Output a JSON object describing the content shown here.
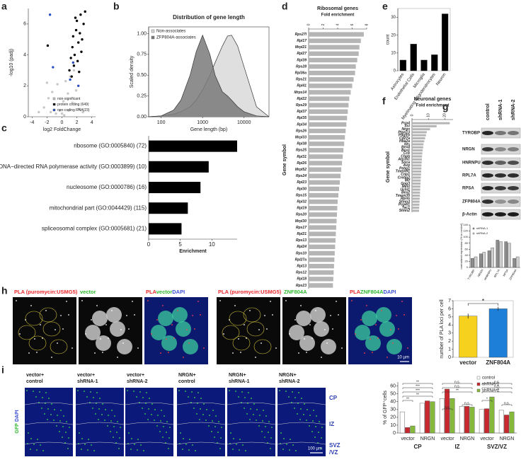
{
  "panel_labels": [
    "a",
    "b",
    "c",
    "d",
    "e",
    "f",
    "g",
    "h",
    "i"
  ],
  "chart_data": [
    {
      "type": "scatter",
      "x_label": "log2 FoldChange",
      "y_label": "-log10 (padj)",
      "xlim": [
        -4.5,
        4.5
      ],
      "ylim": [
        0,
        7
      ],
      "xticks": [
        -4,
        -2,
        0,
        2,
        4
      ],
      "yticks": [
        0,
        2,
        4,
        6
      ],
      "legend": "lower right",
      "series": [
        {
          "name": "non-significant",
          "color": "#c8c8c8",
          "x": [
            -3.1,
            -2.4,
            -1.8,
            -1.3,
            -0.9,
            -0.6,
            -0.3,
            0,
            0.2,
            0.5,
            0.8,
            1.1,
            1.4,
            1.9,
            2.3,
            2.8,
            -1.5,
            -0.8,
            0.3,
            0.9,
            -2.0,
            1.6
          ],
          "values": [
            0.3,
            0.6,
            1.2,
            1.6,
            0.8,
            2.1,
            0.4,
            0.2,
            1.0,
            2.3,
            1.5,
            2.6,
            0.9,
            1.7,
            0.5,
            0.3,
            0.3,
            0.2,
            0.1,
            0.4,
            2.2,
            3.0
          ]
        },
        {
          "name": "protein coding (649)",
          "color": "#000000",
          "x": [
            1.0,
            1.2,
            1.4,
            1.5,
            1.7,
            1.9,
            2.0,
            2.2,
            2.4,
            2.5,
            2.7,
            2.9,
            3.1,
            1.3,
            1.6,
            1.8,
            2.1,
            2.3,
            -1.9,
            2.6
          ],
          "values": [
            3.0,
            3.8,
            4.5,
            5.2,
            4.0,
            5.6,
            6.2,
            4.8,
            5.4,
            6.6,
            5.0,
            6.0,
            6.8,
            2.6,
            3.3,
            6.4,
            3.6,
            2.9,
            4.6,
            4.2
          ]
        },
        {
          "name": "non-coding RNA(23)",
          "color": "#2a4fc4",
          "x": [
            -1.6,
            -1.2,
            1.1,
            1.5,
            2.2
          ],
          "values": [
            6.6,
            3.2,
            2.4,
            3.5,
            2.0
          ]
        }
      ]
    },
    {
      "type": "area",
      "title": "Distribution of gene length",
      "x_label": "Gene length (bp)",
      "y_label": "Scaled density",
      "xscale": "log",
      "xlim": [
        50,
        40000
      ],
      "ylim": [
        0,
        1.08
      ],
      "xticks": [
        100,
        1000,
        10000
      ],
      "yticks": [
        {
          "value": 0,
          "label": "0.00"
        },
        {
          "value": 0.25,
          "label": "0.25"
        },
        {
          "value": 0.5,
          "label": "0.50"
        },
        {
          "value": 0.75,
          "label": "0.75"
        },
        {
          "value": 1,
          "label": "1.00"
        }
      ],
      "legend": "upper left",
      "x": [
        50,
        100,
        200,
        300,
        500,
        700,
        1000,
        1500,
        2000,
        3000,
        4000,
        5000,
        7000,
        10000,
        20000,
        40000
      ],
      "series": [
        {
          "name": "Non-associates",
          "color": "#d9d9d9",
          "values": [
            0,
            0.01,
            0.03,
            0.06,
            0.12,
            0.2,
            0.32,
            0.5,
            0.65,
            0.85,
            0.97,
            0.98,
            0.85,
            0.6,
            0.12,
            0
          ]
        },
        {
          "name": "ZFP804A-associates",
          "color": "#7a7a7a",
          "values": [
            0,
            0.01,
            0.08,
            0.2,
            0.5,
            0.78,
            0.98,
            0.75,
            0.5,
            0.3,
            0.25,
            0.2,
            0.12,
            0.06,
            0.01,
            0
          ]
        }
      ]
    },
    {
      "type": "hbar",
      "x_label": "Enrichment",
      "xlim": [
        0,
        14
      ],
      "xticks": [
        0,
        5,
        10
      ],
      "color": "#000000",
      "xaxis": "bottom",
      "categories": [
        "ribosome (GO:0005840) (72)",
        "DNA−directed RNA polymerase activity (GO:0003899) (10)",
        "nucleosome (GO:0000786) (16)",
        "mitochondrial part (GO:0044429) (115)",
        "spliceosomal complex (GO:0005681) (21)"
      ],
      "values": [
        14,
        9.5,
        8.2,
        6.2,
        5.2
      ]
    },
    {
      "type": "hbar",
      "title": "Ribosomal genes",
      "x_label": "Fold enrichment",
      "y_label": "Gene symbol",
      "xlim": [
        0,
        8
      ],
      "xticks": [
        0,
        2,
        4,
        6,
        8
      ],
      "color": "#b5b5b5",
      "xaxis": "top",
      "categories": [
        "Rps27l",
        "Rpl17",
        "Mrpl21",
        "Rpl27",
        "Rpl39",
        "Rps28",
        "Rpl36a",
        "Rps21",
        "Rpl41",
        "Mrps14",
        "Rpl22",
        "Rps29",
        "Rpl37",
        "Rpl35",
        "Rpl34",
        "Rps26",
        "Mrpl33",
        "Rpl38",
        "Rps25",
        "Rpl31",
        "Rpl26",
        "Mrpl52",
        "Rps24",
        "Rpl23",
        "Rpl30",
        "Rps15",
        "Rpl32",
        "Rpl19",
        "Rps20",
        "Mrpl30",
        "Rps17",
        "Rpl21",
        "Rps13",
        "Rpl24",
        "Rps10",
        "Rpl27a",
        "Rpl13",
        "Rps12",
        "Rpl18",
        "Rps23"
      ],
      "values": [
        7.6,
        7.2,
        7.0,
        6.9,
        6.7,
        6.5,
        6.4,
        6.2,
        6.0,
        5.8,
        5.6,
        5.5,
        5.4,
        5.3,
        5.2,
        5.1,
        5.0,
        4.9,
        4.8,
        4.7,
        4.6,
        4.5,
        4.4,
        4.3,
        4.2,
        4.1,
        4.0,
        3.95,
        3.9,
        3.85,
        3.8,
        3.75,
        3.7,
        3.65,
        3.6,
        3.55,
        3.5,
        3.45,
        3.4,
        3.35
      ]
    },
    {
      "type": "bar",
      "y_label": "count",
      "ylim": [
        0,
        35
      ],
      "yticks": [
        0,
        10,
        20,
        30
      ],
      "color": "#000000",
      "categories": [
        "Astrocytes",
        "Endothelial Cells",
        "Microglia",
        "Myelinating Oligodendrocytes",
        "Neuron"
      ],
      "values": [
        6,
        15,
        6,
        9,
        32
      ]
    },
    {
      "type": "hbar",
      "title": "Neuronal genes",
      "x_label": "Fold enrichment",
      "y_label": "Gene symbol",
      "xlim": [
        0,
        25
      ],
      "xticks": [
        0,
        10,
        20
      ],
      "color": "#b5b5b5",
      "xaxis": "top",
      "categories": [
        "Pcp4",
        "Sst",
        "Nrgn",
        "Ptpn13",
        "Pdgfrb",
        "Cd27a",
        "Hba2a",
        "Nts",
        "Bex4",
        "Bex1",
        "Cck",
        "Chgb",
        "Atp1a1",
        "Snca",
        "Avp",
        "Pebp1",
        "Tmem91",
        "Crip1",
        "Crebp2",
        "Mif",
        "Gng3",
        "Mest",
        "Uchl1",
        "Bex2",
        "Tmem35",
        "Rprm",
        "Stmn3",
        "Pcp4l1",
        "Tac1",
        "Stmn2"
      ],
      "values": [
        23,
        15,
        11,
        9,
        8.5,
        8,
        7.5,
        7,
        6.8,
        6.5,
        6.3,
        6.1,
        6,
        5.9,
        5.8,
        5.7,
        5.6,
        5.5,
        5.4,
        5.3,
        5.2,
        5.1,
        5,
        4.9,
        4.8,
        4.7,
        4.6,
        4.5,
        4.4,
        4.3
      ]
    },
    {
      "type": "grouped_bar",
      "y_label": "normalized expression (% to control)",
      "ylim": [
        0,
        140
      ],
      "yticks": [
        0,
        20,
        40,
        60,
        80,
        100,
        120,
        140
      ],
      "legend": "upper left",
      "categories": [
        "TYROBP",
        "NRGN",
        "HNRNPU",
        "RPL7A",
        "RPSA",
        "ZFP804A"
      ],
      "series": [
        {
          "name": "shRNA-1",
          "color": "#8c8c8c",
          "values": [
            30,
            45,
            55,
            90,
            85,
            30
          ]
        },
        {
          "name": "shRNA-2",
          "color": "#cfcfcf",
          "values": [
            35,
            50,
            65,
            85,
            80,
            35
          ]
        }
      ]
    },
    {
      "type": "bar",
      "y_label": "number of PLA loci per cell",
      "ylim": [
        0,
        7
      ],
      "yticks": [
        0,
        1,
        2,
        3,
        4,
        5,
        6,
        7
      ],
      "categories": [
        "vector",
        "ZNF804A"
      ],
      "colors": [
        "#f6d21e",
        "#1e7fd8"
      ],
      "values": [
        5.1,
        6.0
      ],
      "errors": [
        0.3,
        0.25
      ],
      "annotation": "*"
    },
    {
      "type": "grouped_bar",
      "y_label": "% of GFP⁺cells",
      "ylim": [
        0,
        65
      ],
      "yticks": [
        0,
        10,
        20,
        30,
        40,
        50,
        60
      ],
      "legend": "upper right",
      "categories": [
        "vector",
        "NRGN",
        "vector",
        "NRGN",
        "vector",
        "NRGN"
      ],
      "groups": [
        "CP",
        "IZ",
        "SVZ/VZ"
      ],
      "series": [
        {
          "name": "control",
          "color": "#ffffff",
          "values": [
            27,
            38,
            44,
            34,
            30,
            29
          ]
        },
        {
          "name": "shRNA-1",
          "color": "#c8282d",
          "values": [
            7,
            41,
            56,
            34,
            31,
            23
          ]
        },
        {
          "name": "shRNA-2",
          "color": "#86b83c",
          "values": [
            9,
            40,
            44,
            33,
            46,
            27
          ]
        }
      ],
      "annotations": [
        "**",
        "***",
        "***",
        "**",
        "**",
        "n.s.",
        "n.s.",
        "**",
        "n.s.",
        "n.s.",
        "n.s.",
        "n.s.",
        "*",
        "**",
        "n.s."
      ]
    }
  ],
  "blot": {
    "columns": [
      "control",
      "shRNA-1",
      "shRNA-2"
    ],
    "rows": [
      "TYROBP",
      "NRGN",
      "HNRNPU",
      "RPL7A",
      "RPSA",
      "ZFP804A",
      "β-Actin"
    ]
  },
  "micrographs_h": {
    "labels": [
      [
        {
          "text": "PLA (puromycin:USMG5)",
          "color": "#e8262a"
        }
      ],
      [
        {
          "text": "vector",
          "color": "#2eb82e"
        }
      ],
      [
        {
          "text": "PLA",
          "color": "#e8262a"
        },
        {
          "text": "vector",
          "color": "#2eb82e"
        },
        {
          "text": "DAPI",
          "color": "#3a4fd6"
        }
      ],
      [
        {
          "text": "PLA (puromycin:USMG5)",
          "color": "#e8262a"
        }
      ],
      [
        {
          "text": "ZNF804A",
          "color": "#2eb82e"
        }
      ],
      [
        {
          "text": "PLA",
          "color": "#e8262a"
        },
        {
          "text": "ZNF804A",
          "color": "#2eb82e"
        },
        {
          "text": "DAPI",
          "color": "#3a4fd6"
        }
      ]
    ],
    "scale_bar": "10 µm"
  },
  "micrographs_i": {
    "labels": [
      [
        "vector+",
        "control"
      ],
      [
        "vector+",
        "shRNA-1"
      ],
      [
        "vector+",
        "shRNA-2"
      ],
      [
        "NRGN+",
        "control"
      ],
      [
        "NRGN+",
        "shRNA-1"
      ],
      [
        "NRGN+",
        "shRNA-2"
      ]
    ],
    "stain": [
      {
        "text": "GFP",
        "color": "#2eb82e"
      },
      {
        "text": "DAPI",
        "color": "#3a4fd6"
      }
    ],
    "regions": [
      "CP",
      "IZ",
      "SVZ",
      "/VZ"
    ],
    "scale_bar": "100 µm"
  }
}
